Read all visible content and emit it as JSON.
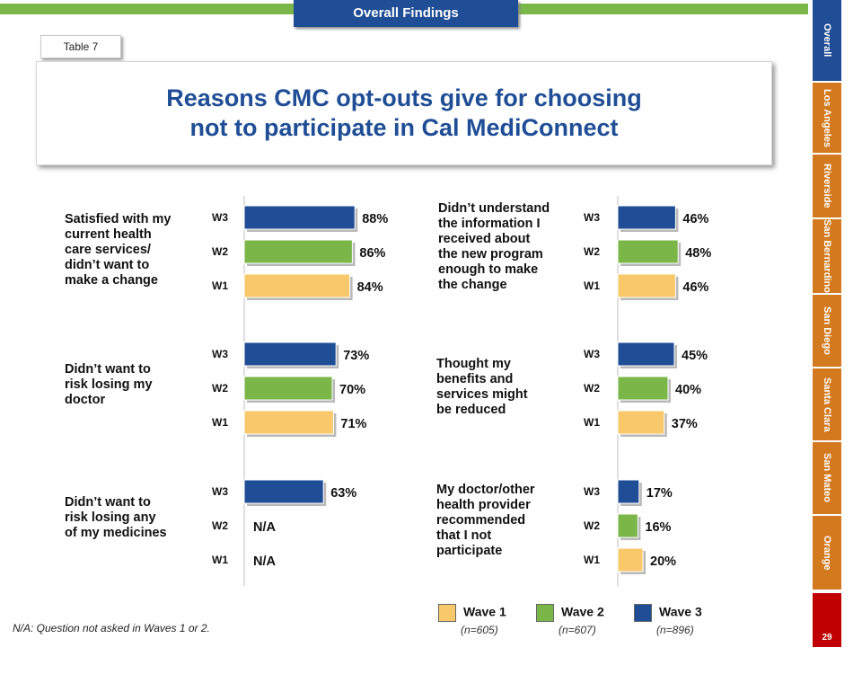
{
  "header": {
    "section_tab": "Overall Findings",
    "table_label": "Table 7",
    "title_line1": "Reasons CMC opt-outs give for choosing",
    "title_line2": "not to participate in Cal MediConnect"
  },
  "sidenav": {
    "items": [
      "Overall",
      "Los Angeles",
      "Riverside",
      "San Bernardino",
      "San Diego",
      "Santa Clara",
      "San Mateo",
      "Orange"
    ],
    "active": "Overall",
    "page_number": "29"
  },
  "colors": {
    "wave1": "#f8c86a",
    "wave2": "#7ab648",
    "wave3": "#1f4e96",
    "brand_blue": "#1f4e96",
    "nav_orange": "#d47a1e",
    "page_red": "#c00000"
  },
  "chart_data": {
    "type": "bar",
    "orientation": "horizontal",
    "series_order": [
      "W3",
      "W2",
      "W1"
    ],
    "groups": [
      {
        "label_lines": [
          "Satisfied with my",
          "current health",
          "care services/",
          "didn’t want to",
          "make a change"
        ],
        "values": {
          "W3": 88,
          "W2": 86,
          "W1": 84
        }
      },
      {
        "label_lines": [
          "Didn’t want to",
          "risk losing my",
          "doctor"
        ],
        "values": {
          "W3": 73,
          "W2": 70,
          "W1": 71
        }
      },
      {
        "label_lines": [
          "Didn’t want to",
          "risk losing any",
          "of my medicines"
        ],
        "values": {
          "W3": 63,
          "W2": null,
          "W1": null
        }
      },
      {
        "label_lines": [
          "Didn’t understand",
          "the information I",
          "received about",
          "the new program",
          "enough to make",
          "the change"
        ],
        "values": {
          "W3": 46,
          "W2": 48,
          "W1": 46
        }
      },
      {
        "label_lines": [
          "Thought my",
          "benefits and",
          "services might",
          "be reduced"
        ],
        "values": {
          "W3": 45,
          "W2": 40,
          "W1": 37
        }
      },
      {
        "label_lines": [
          "My doctor/other",
          "health provider",
          "recommended",
          "that I not",
          "participate"
        ],
        "values": {
          "W3": 17,
          "W2": 16,
          "W1": 20
        }
      }
    ],
    "na_text": "N/A",
    "value_suffix": "%",
    "legend": [
      {
        "key": "W1",
        "label": "Wave 1",
        "n": "(n=605)"
      },
      {
        "key": "W2",
        "label": "Wave 2",
        "n": "(n=607)"
      },
      {
        "key": "W3",
        "label": "Wave 3",
        "n": "(n=896)"
      }
    ]
  },
  "footnote": "N/A: Question not asked  in Waves 1 or 2."
}
